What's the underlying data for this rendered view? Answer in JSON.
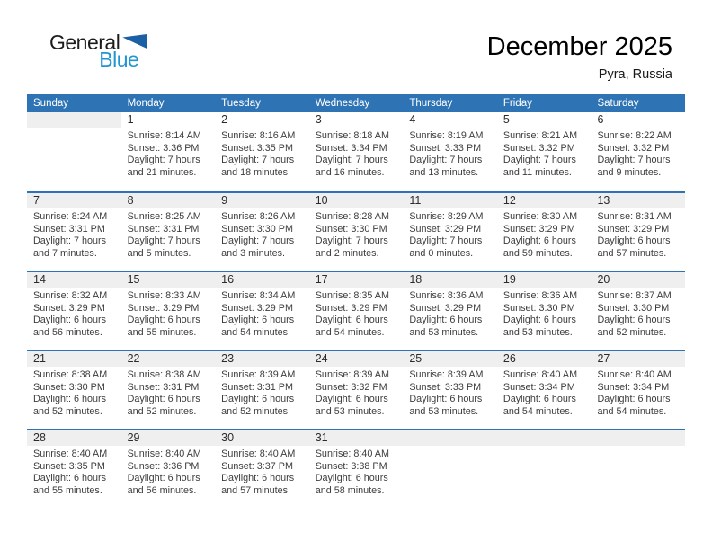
{
  "logo": {
    "general": "General",
    "blue": "Blue"
  },
  "header": {
    "title": "December 2025",
    "location": "Pyra, Russia"
  },
  "weekdays": [
    "Sunday",
    "Monday",
    "Tuesday",
    "Wednesday",
    "Thursday",
    "Friday",
    "Saturday"
  ],
  "weeks": [
    [
      {
        "day": "",
        "lines": []
      },
      {
        "day": "1",
        "lines": [
          "Sunrise: 8:14 AM",
          "Sunset: 3:36 PM",
          "Daylight: 7 hours",
          "and 21 minutes."
        ]
      },
      {
        "day": "2",
        "lines": [
          "Sunrise: 8:16 AM",
          "Sunset: 3:35 PM",
          "Daylight: 7 hours",
          "and 18 minutes."
        ]
      },
      {
        "day": "3",
        "lines": [
          "Sunrise: 8:18 AM",
          "Sunset: 3:34 PM",
          "Daylight: 7 hours",
          "and 16 minutes."
        ]
      },
      {
        "day": "4",
        "lines": [
          "Sunrise: 8:19 AM",
          "Sunset: 3:33 PM",
          "Daylight: 7 hours",
          "and 13 minutes."
        ]
      },
      {
        "day": "5",
        "lines": [
          "Sunrise: 8:21 AM",
          "Sunset: 3:32 PM",
          "Daylight: 7 hours",
          "and 11 minutes."
        ]
      },
      {
        "day": "6",
        "lines": [
          "Sunrise: 8:22 AM",
          "Sunset: 3:32 PM",
          "Daylight: 7 hours",
          "and 9 minutes."
        ]
      }
    ],
    [
      {
        "day": "7",
        "lines": [
          "Sunrise: 8:24 AM",
          "Sunset: 3:31 PM",
          "Daylight: 7 hours",
          "and 7 minutes."
        ]
      },
      {
        "day": "8",
        "lines": [
          "Sunrise: 8:25 AM",
          "Sunset: 3:31 PM",
          "Daylight: 7 hours",
          "and 5 minutes."
        ]
      },
      {
        "day": "9",
        "lines": [
          "Sunrise: 8:26 AM",
          "Sunset: 3:30 PM",
          "Daylight: 7 hours",
          "and 3 minutes."
        ]
      },
      {
        "day": "10",
        "lines": [
          "Sunrise: 8:28 AM",
          "Sunset: 3:30 PM",
          "Daylight: 7 hours",
          "and 2 minutes."
        ]
      },
      {
        "day": "11",
        "lines": [
          "Sunrise: 8:29 AM",
          "Sunset: 3:29 PM",
          "Daylight: 7 hours",
          "and 0 minutes."
        ]
      },
      {
        "day": "12",
        "lines": [
          "Sunrise: 8:30 AM",
          "Sunset: 3:29 PM",
          "Daylight: 6 hours",
          "and 59 minutes."
        ]
      },
      {
        "day": "13",
        "lines": [
          "Sunrise: 8:31 AM",
          "Sunset: 3:29 PM",
          "Daylight: 6 hours",
          "and 57 minutes."
        ]
      }
    ],
    [
      {
        "day": "14",
        "lines": [
          "Sunrise: 8:32 AM",
          "Sunset: 3:29 PM",
          "Daylight: 6 hours",
          "and 56 minutes."
        ]
      },
      {
        "day": "15",
        "lines": [
          "Sunrise: 8:33 AM",
          "Sunset: 3:29 PM",
          "Daylight: 6 hours",
          "and 55 minutes."
        ]
      },
      {
        "day": "16",
        "lines": [
          "Sunrise: 8:34 AM",
          "Sunset: 3:29 PM",
          "Daylight: 6 hours",
          "and 54 minutes."
        ]
      },
      {
        "day": "17",
        "lines": [
          "Sunrise: 8:35 AM",
          "Sunset: 3:29 PM",
          "Daylight: 6 hours",
          "and 54 minutes."
        ]
      },
      {
        "day": "18",
        "lines": [
          "Sunrise: 8:36 AM",
          "Sunset: 3:29 PM",
          "Daylight: 6 hours",
          "and 53 minutes."
        ]
      },
      {
        "day": "19",
        "lines": [
          "Sunrise: 8:36 AM",
          "Sunset: 3:30 PM",
          "Daylight: 6 hours",
          "and 53 minutes."
        ]
      },
      {
        "day": "20",
        "lines": [
          "Sunrise: 8:37 AM",
          "Sunset: 3:30 PM",
          "Daylight: 6 hours",
          "and 52 minutes."
        ]
      }
    ],
    [
      {
        "day": "21",
        "lines": [
          "Sunrise: 8:38 AM",
          "Sunset: 3:30 PM",
          "Daylight: 6 hours",
          "and 52 minutes."
        ]
      },
      {
        "day": "22",
        "lines": [
          "Sunrise: 8:38 AM",
          "Sunset: 3:31 PM",
          "Daylight: 6 hours",
          "and 52 minutes."
        ]
      },
      {
        "day": "23",
        "lines": [
          "Sunrise: 8:39 AM",
          "Sunset: 3:31 PM",
          "Daylight: 6 hours",
          "and 52 minutes."
        ]
      },
      {
        "day": "24",
        "lines": [
          "Sunrise: 8:39 AM",
          "Sunset: 3:32 PM",
          "Daylight: 6 hours",
          "and 53 minutes."
        ]
      },
      {
        "day": "25",
        "lines": [
          "Sunrise: 8:39 AM",
          "Sunset: 3:33 PM",
          "Daylight: 6 hours",
          "and 53 minutes."
        ]
      },
      {
        "day": "26",
        "lines": [
          "Sunrise: 8:40 AM",
          "Sunset: 3:34 PM",
          "Daylight: 6 hours",
          "and 54 minutes."
        ]
      },
      {
        "day": "27",
        "lines": [
          "Sunrise: 8:40 AM",
          "Sunset: 3:34 PM",
          "Daylight: 6 hours",
          "and 54 minutes."
        ]
      }
    ],
    [
      {
        "day": "28",
        "lines": [
          "Sunrise: 8:40 AM",
          "Sunset: 3:35 PM",
          "Daylight: 6 hours",
          "and 55 minutes."
        ]
      },
      {
        "day": "29",
        "lines": [
          "Sunrise: 8:40 AM",
          "Sunset: 3:36 PM",
          "Daylight: 6 hours",
          "and 56 minutes."
        ]
      },
      {
        "day": "30",
        "lines": [
          "Sunrise: 8:40 AM",
          "Sunset: 3:37 PM",
          "Daylight: 6 hours",
          "and 57 minutes."
        ]
      },
      {
        "day": "31",
        "lines": [
          "Sunrise: 8:40 AM",
          "Sunset: 3:38 PM",
          "Daylight: 6 hours",
          "and 58 minutes."
        ]
      },
      {
        "day": "",
        "lines": []
      },
      {
        "day": "",
        "lines": []
      },
      {
        "day": "",
        "lines": []
      }
    ]
  ],
  "colors": {
    "header_blue": "#2e74b5",
    "row_line_blue": "#2e74b5",
    "band_gray": "#efefef",
    "logo_text_blue": "#2095d3",
    "logo_triangle_blue": "#1b5fa5"
  }
}
